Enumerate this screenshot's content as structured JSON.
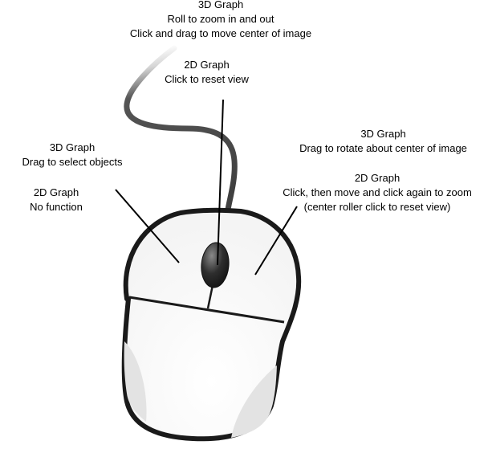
{
  "labels": {
    "top_3d": {
      "heading": "3D Graph",
      "line1": "Roll to zoom in and out",
      "line2": "Click and drag to move center of image"
    },
    "top_2d": {
      "heading": "2D Graph",
      "line1": "Click to reset view"
    },
    "left_3d": {
      "heading": "3D Graph",
      "line1": "Drag to select objects"
    },
    "left_2d": {
      "heading": "2D Graph",
      "line1": "No function"
    },
    "right_3d": {
      "heading": "3D Graph",
      "line1": "Drag to rotate about center of image"
    },
    "right_2d": {
      "heading": "2D Graph",
      "line1": "Click, then move and click again to zoom",
      "line2": "(center roller click to reset view)"
    }
  },
  "colors": {
    "outline": "#1a1a1a",
    "body_fill": "#ffffff",
    "shadow": "#e6e6e6",
    "wheel": "#2b2b2b"
  }
}
